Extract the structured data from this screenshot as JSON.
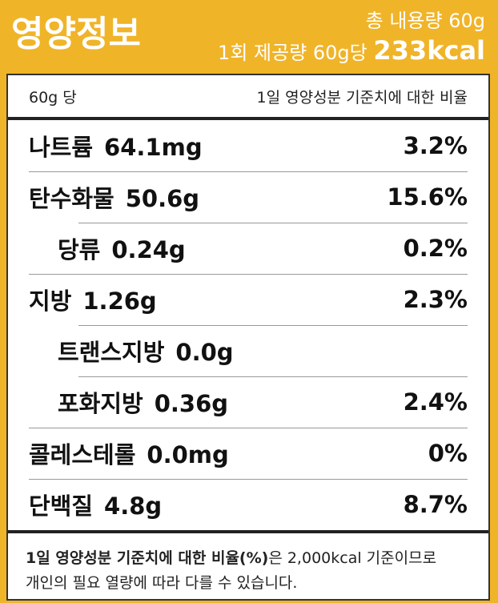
{
  "header": {
    "title": "영양정보",
    "total": "총 내용량 60g",
    "serving": "1회 제공량 60g당",
    "calories": "233kcal"
  },
  "table": {
    "basis": "60g 당",
    "daily_header": "1일 영양성분 기준치에 대한 비율",
    "rows": [
      {
        "name": "나트륨",
        "amount": "64.1mg",
        "percent": "3.2%"
      },
      {
        "name": "탄수화물",
        "amount": "50.6g",
        "percent": "15.6%",
        "subrows": [
          {
            "name": "당류",
            "amount": "0.24g",
            "percent": "0.2%"
          }
        ]
      },
      {
        "name": "지방",
        "amount": "1.26g",
        "percent": "2.3%",
        "subrows": [
          {
            "name": "트랜스지방",
            "amount": "0.0g"
          },
          {
            "name": "포화지방",
            "amount": "0.36g",
            "percent": "2.4%"
          }
        ]
      },
      {
        "name": "콜레스테롤",
        "amount": "0.0mg",
        "percent": "0%"
      },
      {
        "name": "단백질",
        "amount": "4.8g",
        "percent": "8.7%"
      }
    ]
  },
  "footer": {
    "bold": "1일 영양성분 기준치에 대한 비율(%)",
    "text": "은 2,000kcal 기준이므로",
    "line2": "개인의 필요 열량에 따라 다를 수 있습니다."
  }
}
